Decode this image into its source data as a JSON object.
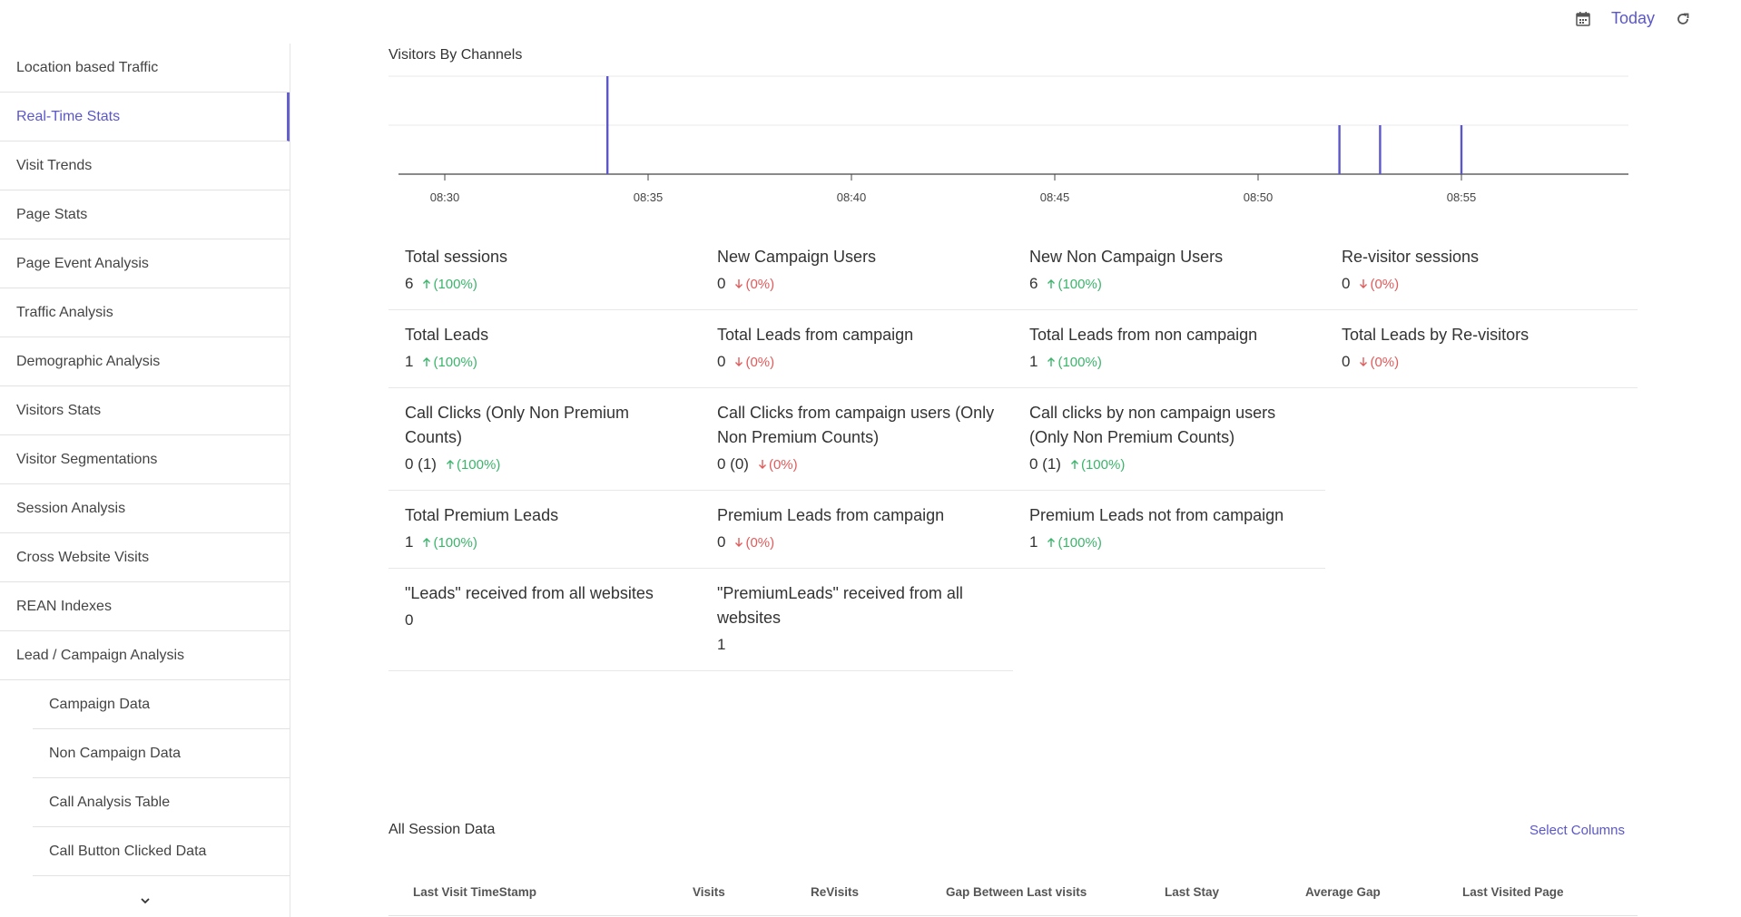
{
  "header": {
    "date_label": "Today"
  },
  "sidebar": {
    "items": [
      {
        "label": "Location based Traffic"
      },
      {
        "label": "Real-Time Stats"
      },
      {
        "label": "Visit Trends"
      },
      {
        "label": "Page Stats"
      },
      {
        "label": "Page Event Analysis"
      },
      {
        "label": "Traffic Analysis"
      },
      {
        "label": "Demographic Analysis"
      },
      {
        "label": "Visitors Stats"
      },
      {
        "label": "Visitor Segmentations"
      },
      {
        "label": "Session Analysis"
      },
      {
        "label": "Cross Website Visits"
      },
      {
        "label": "REAN Indexes"
      },
      {
        "label": "Lead / Campaign Analysis"
      }
    ],
    "sub_items": [
      {
        "label": "Campaign Data"
      },
      {
        "label": "Non Campaign Data"
      },
      {
        "label": "Call Analysis Table"
      },
      {
        "label": "Call Button Clicked Data"
      }
    ],
    "active_index": 1
  },
  "chart_data": {
    "type": "bar",
    "title": "Visitors By Channels",
    "x_ticks": [
      "08:30",
      "08:35",
      "08:40",
      "08:45",
      "08:50",
      "08:55"
    ],
    "x": [
      "08:34",
      "08:52",
      "08:53",
      "08:55"
    ],
    "values": [
      2,
      1,
      1,
      1
    ],
    "ylim": [
      0,
      2
    ],
    "grid": true,
    "color": "#5b57c9"
  },
  "metrics": {
    "rows": [
      [
        {
          "label": "Total sessions",
          "value": "6",
          "delta": "(100%)",
          "dir": "up"
        },
        {
          "label": "New Campaign Users",
          "value": "0",
          "delta": "(0%)",
          "dir": "down"
        },
        {
          "label": "New Non Campaign Users",
          "value": "6",
          "delta": "(100%)",
          "dir": "up"
        },
        {
          "label": "Re-visitor sessions",
          "value": "0",
          "delta": "(0%)",
          "dir": "down"
        }
      ],
      [
        {
          "label": "Total Leads",
          "value": "1",
          "delta": "(100%)",
          "dir": "up"
        },
        {
          "label": "Total Leads from campaign",
          "value": "0",
          "delta": "(0%)",
          "dir": "down"
        },
        {
          "label": "Total Leads from non campaign",
          "value": "1",
          "delta": "(100%)",
          "dir": "up"
        },
        {
          "label": "Total Leads by Re-visitors",
          "value": "0",
          "delta": "(0%)",
          "dir": "down"
        }
      ],
      [
        {
          "label": "Call Clicks (Only Non Premium Counts)",
          "value": "0 (1)",
          "delta": "(100%)",
          "dir": "up"
        },
        {
          "label": "Call Clicks from campaign users (Only Non Premium Counts)",
          "value": "0 (0)",
          "delta": "(0%)",
          "dir": "down"
        },
        {
          "label": "Call clicks by non campaign users (Only Non Premium Counts)",
          "value": "0 (1)",
          "delta": "(100%)",
          "dir": "up"
        }
      ],
      [
        {
          "label": "Total Premium Leads",
          "value": "1",
          "delta": "(100%)",
          "dir": "up"
        },
        {
          "label": "Premium Leads from campaign",
          "value": "0",
          "delta": "(0%)",
          "dir": "down"
        },
        {
          "label": "Premium Leads not from campaign",
          "value": "1",
          "delta": "(100%)",
          "dir": "up"
        }
      ],
      [
        {
          "label": "\"Leads\" received from all websites",
          "value": "0"
        },
        {
          "label": "\"PremiumLeads\" received from all websites",
          "value": "1"
        }
      ]
    ]
  },
  "session_table": {
    "title": "All Session Data",
    "select_columns_label": "Select Columns",
    "columns": [
      "Last Visit TimeStamp",
      "Visits",
      "ReVisits",
      "Gap Between Last visits",
      "Last Stay",
      "Average Gap",
      "Last Visited Page"
    ]
  },
  "colors": {
    "accent": "#5b57c9",
    "up": "#3bb56b",
    "down": "#e05b5b"
  },
  "icons": {
    "calendar": "calendar-icon",
    "refresh": "refresh-icon",
    "more": "chevron-down-icon"
  }
}
